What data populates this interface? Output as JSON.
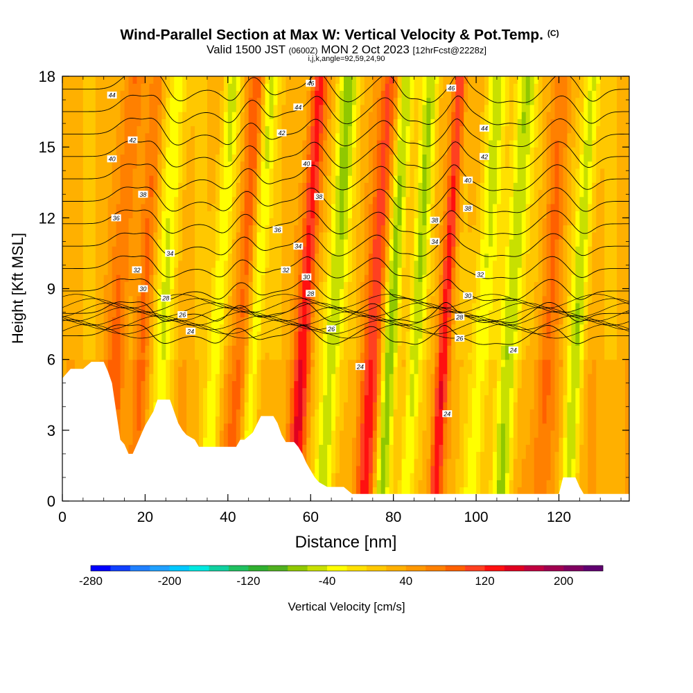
{
  "chart_data": {
    "type": "heatmap",
    "title": "Wind-Parallel Section at Max W: Vertical Velocity & Pot.Temp.",
    "title_unit": "(C)",
    "subtitle_prefix": "Valid 1500 JST",
    "subtitle_utc": "(0600Z)",
    "subtitle_date": "MON 2 Oct 2023",
    "subtitle_fcst": "[12hrFcst@2228z]",
    "subtitle2": "i,j,k,angle=92,59,24,90",
    "xlabel": "Distance [nm]",
    "ylabel": "Height [Kft MSL]",
    "xlim": [
      0,
      137
    ],
    "ylim": [
      0,
      18
    ],
    "x_ticks": [
      "0",
      "20",
      "40",
      "60",
      "80",
      "100",
      "120"
    ],
    "y_ticks": [
      "0",
      "3",
      "6",
      "9",
      "12",
      "15",
      "18"
    ],
    "colorbar": {
      "label": "Vertical Velocity [cm/s]",
      "tick_labels": [
        "-280",
        "-200",
        "-120",
        "-40",
        "40",
        "120",
        "200"
      ],
      "colors": [
        "#0000ff",
        "#1040ff",
        "#2080ff",
        "#20a0ff",
        "#00c8ff",
        "#00e8e0",
        "#10d0a0",
        "#20c060",
        "#30b030",
        "#50b020",
        "#90c800",
        "#c8e000",
        "#ffff00",
        "#ffe000",
        "#ffc800",
        "#ffb000",
        "#ff9800",
        "#ff8000",
        "#ff6000",
        "#ff4020",
        "#ff1010",
        "#e00020",
        "#c00040",
        "#a00050",
        "#800060",
        "#600070"
      ]
    },
    "terrain_kft": [
      [
        0,
        5.2
      ],
      [
        2,
        5.6
      ],
      [
        5,
        5.6
      ],
      [
        7,
        5.9
      ],
      [
        10,
        5.9
      ],
      [
        11,
        5.5
      ],
      [
        12,
        5.0
      ],
      [
        13,
        3.8
      ],
      [
        14,
        2.6
      ],
      [
        15,
        2.4
      ],
      [
        16,
        2.0
      ],
      [
        17,
        2.0
      ],
      [
        18,
        2.4
      ],
      [
        19,
        2.8
      ],
      [
        20,
        3.2
      ],
      [
        22,
        3.8
      ],
      [
        23,
        4.3
      ],
      [
        26,
        4.3
      ],
      [
        27,
        3.8
      ],
      [
        28,
        3.3
      ],
      [
        29,
        3.0
      ],
      [
        30,
        2.8
      ],
      [
        32,
        2.6
      ],
      [
        33,
        2.3
      ],
      [
        36,
        2.3
      ],
      [
        38,
        2.3
      ],
      [
        40,
        2.3
      ],
      [
        42,
        2.3
      ],
      [
        43,
        2.6
      ],
      [
        44,
        2.6
      ],
      [
        46,
        2.9
      ],
      [
        48,
        3.6
      ],
      [
        51,
        3.6
      ],
      [
        52,
        3.3
      ],
      [
        53,
        2.8
      ],
      [
        54,
        2.5
      ],
      [
        56,
        2.5
      ],
      [
        57,
        2.3
      ],
      [
        58,
        2.0
      ],
      [
        59,
        1.6
      ],
      [
        60,
        1.3
      ],
      [
        61,
        1.0
      ],
      [
        62,
        0.8
      ],
      [
        64,
        0.6
      ],
      [
        68,
        0.6
      ],
      [
        70,
        0.3
      ],
      [
        90,
        0.3
      ],
      [
        92,
        0.3
      ],
      [
        110,
        0.3
      ],
      [
        120,
        0.3
      ],
      [
        121,
        1.0
      ],
      [
        124,
        1.0
      ],
      [
        125,
        0.6
      ],
      [
        126,
        0.3
      ],
      [
        137,
        0.3
      ]
    ],
    "vertical_velocity_bands": [
      {
        "x": 13,
        "w": 2.5,
        "v": 60
      },
      {
        "x": 19,
        "w": 2.0,
        "v": 50
      },
      {
        "x": 24,
        "w": 2.5,
        "v": -60
      },
      {
        "x": 37,
        "w": 2.0,
        "v": -70
      },
      {
        "x": 43,
        "w": 2.5,
        "v": 70
      },
      {
        "x": 46,
        "w": 2.0,
        "v": -80
      },
      {
        "x": 58,
        "w": 2.0,
        "v": 110
      },
      {
        "x": 65,
        "w": 2.5,
        "v": -90
      },
      {
        "x": 75,
        "w": 2.5,
        "v": 90
      },
      {
        "x": 79,
        "w": 2.0,
        "v": -100
      },
      {
        "x": 85,
        "w": 2.0,
        "v": -80
      },
      {
        "x": 92,
        "w": 1.5,
        "v": 100
      },
      {
        "x": 101,
        "w": 2.5,
        "v": -70
      },
      {
        "x": 108,
        "w": 2.5,
        "v": -90
      },
      {
        "x": 117,
        "w": 2.5,
        "v": 50
      },
      {
        "x": 124,
        "w": 2.0,
        "v": -80
      }
    ],
    "theta_contours": {
      "levels": [
        24,
        26,
        28,
        30,
        32,
        34,
        36,
        38,
        40,
        42,
        44,
        46
      ],
      "labels": [
        {
          "text": "44",
          "x": 12,
          "y": 17.2
        },
        {
          "text": "42",
          "x": 17,
          "y": 15.3
        },
        {
          "text": "40",
          "x": 12,
          "y": 14.5
        },
        {
          "text": "38",
          "x": 19.5,
          "y": 13.0
        },
        {
          "text": "36",
          "x": 13,
          "y": 12.0
        },
        {
          "text": "34",
          "x": 26,
          "y": 10.5
        },
        {
          "text": "32",
          "x": 18,
          "y": 9.8
        },
        {
          "text": "30",
          "x": 19.5,
          "y": 9.0
        },
        {
          "text": "28",
          "x": 25,
          "y": 8.6
        },
        {
          "text": "26",
          "x": 29,
          "y": 7.9
        },
        {
          "text": "24",
          "x": 31,
          "y": 7.2
        },
        {
          "text": "46",
          "x": 60,
          "y": 17.7
        },
        {
          "text": "44",
          "x": 57,
          "y": 16.7
        },
        {
          "text": "42",
          "x": 53,
          "y": 15.6
        },
        {
          "text": "40",
          "x": 59,
          "y": 14.3
        },
        {
          "text": "38",
          "x": 62,
          "y": 12.9
        },
        {
          "text": "36",
          "x": 52,
          "y": 11.5
        },
        {
          "text": "34",
          "x": 57,
          "y": 10.8
        },
        {
          "text": "32",
          "x": 54,
          "y": 9.8
        },
        {
          "text": "30",
          "x": 59,
          "y": 9.5
        },
        {
          "text": "28",
          "x": 60,
          "y": 8.8
        },
        {
          "text": "26",
          "x": 65,
          "y": 7.3
        },
        {
          "text": "24",
          "x": 72,
          "y": 5.7
        },
        {
          "text": "46",
          "x": 94,
          "y": 17.5
        },
        {
          "text": "44",
          "x": 102,
          "y": 15.8
        },
        {
          "text": "42",
          "x": 102,
          "y": 14.6
        },
        {
          "text": "40",
          "x": 98,
          "y": 13.6
        },
        {
          "text": "38",
          "x": 98,
          "y": 12.4
        },
        {
          "text": "38",
          "x": 90,
          "y": 11.9
        },
        {
          "text": "34",
          "x": 90,
          "y": 11.0
        },
        {
          "text": "32",
          "x": 101,
          "y": 9.6
        },
        {
          "text": "30",
          "x": 98,
          "y": 8.7
        },
        {
          "text": "28",
          "x": 96,
          "y": 7.8
        },
        {
          "text": "26",
          "x": 96,
          "y": 6.9
        },
        {
          "text": "24",
          "x": 109,
          "y": 6.4
        },
        {
          "text": "24",
          "x": 93,
          "y": 3.7
        }
      ]
    }
  }
}
